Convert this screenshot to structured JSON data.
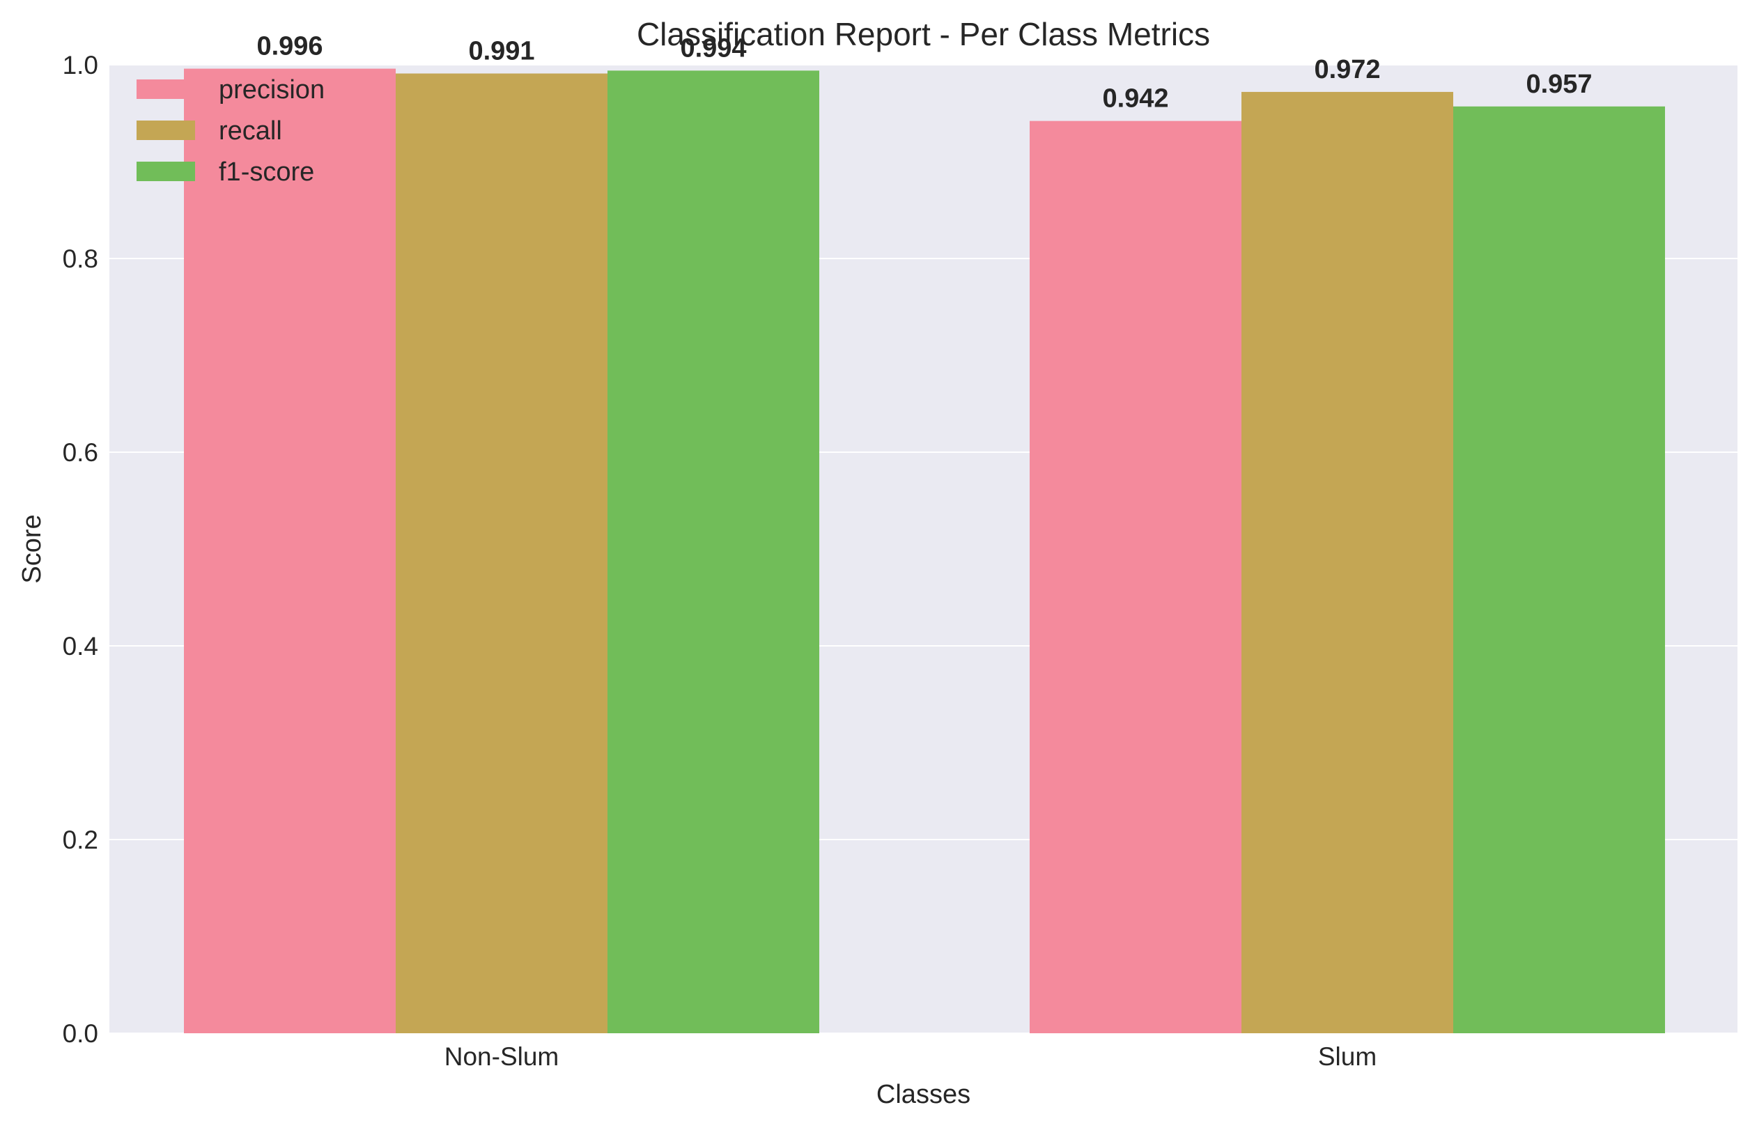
{
  "chart_data": {
    "type": "bar",
    "title": "Classification Report - Per Class Metrics",
    "xlabel": "Classes",
    "ylabel": "Score",
    "categories": [
      "Non-Slum",
      "Slum"
    ],
    "series": [
      {
        "name": "precision",
        "values": [
          0.996,
          0.942
        ],
        "labels": [
          "0.996",
          "0.942"
        ],
        "color": "#f48a9c"
      },
      {
        "name": "recall",
        "values": [
          0.991,
          0.972
        ],
        "labels": [
          "0.991",
          "0.972"
        ],
        "color": "#c4a654"
      },
      {
        "name": "f1-score",
        "values": [
          0.994,
          0.957
        ],
        "labels": [
          "0.994",
          "0.957"
        ],
        "color": "#71bd59"
      }
    ],
    "ylim": [
      0,
      1.0
    ],
    "yticks": [
      {
        "value": 0.0,
        "label": "0.0"
      },
      {
        "value": 0.2,
        "label": "0.2"
      },
      {
        "value": 0.4,
        "label": "0.4"
      },
      {
        "value": 0.6,
        "label": "0.6"
      },
      {
        "value": 0.8,
        "label": "0.8"
      },
      {
        "value": 1.0,
        "label": "1.0"
      }
    ],
    "grid": true,
    "legend_position": "top-left",
    "background_color": "#eaeaf2",
    "gridline_color": "#ffffff"
  }
}
